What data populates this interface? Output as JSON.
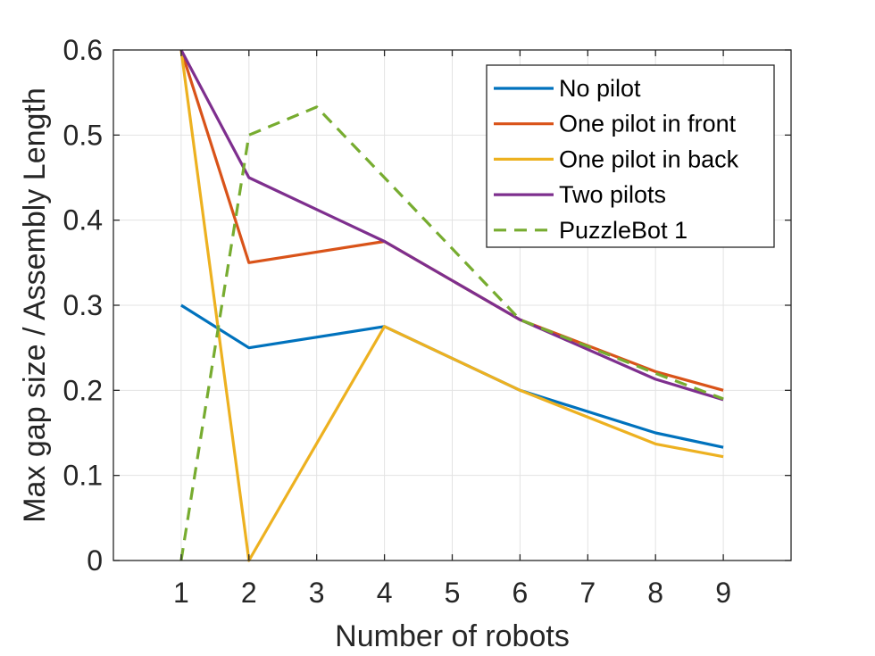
{
  "chart_data": {
    "type": "line",
    "xlabel": "Number of robots",
    "ylabel": "Max gap size / Assembly Length",
    "xlim": [
      0,
      10
    ],
    "ylim": [
      0,
      0.6
    ],
    "x_ticks": [
      1,
      2,
      3,
      4,
      5,
      6,
      7,
      8,
      9
    ],
    "x_tick_labels": [
      "1",
      "2",
      "3",
      "4",
      "5",
      "6",
      "7",
      "8",
      "9"
    ],
    "y_ticks": [
      0,
      0.1,
      0.2,
      0.3,
      0.4,
      0.5,
      0.6
    ],
    "y_tick_labels": [
      "0",
      "0.1",
      "0.2",
      "0.3",
      "0.4",
      "0.5",
      "0.6"
    ],
    "grid": true,
    "legend_position": "top-right",
    "series": [
      {
        "name": "No pilot",
        "color": "#0072BD",
        "dash": "solid",
        "x": [
          1,
          2,
          4,
          6,
          8,
          9
        ],
        "values": [
          0.3,
          0.25,
          0.275,
          0.2,
          0.15,
          0.133
        ]
      },
      {
        "name": "One pilot in front",
        "color": "#D95319",
        "dash": "solid",
        "x": [
          1,
          2,
          4,
          6,
          8,
          9
        ],
        "values": [
          0.6,
          0.35,
          0.375,
          0.283,
          0.222,
          0.2
        ]
      },
      {
        "name": "One pilot in back",
        "color": "#EDB120",
        "dash": "solid",
        "x": [
          1,
          2,
          4,
          6,
          8,
          9
        ],
        "values": [
          0.6,
          0.0,
          0.275,
          0.2,
          0.137,
          0.122
        ]
      },
      {
        "name": "Two pilots",
        "color": "#7E2F8E",
        "dash": "solid",
        "x": [
          1,
          2,
          4,
          6,
          8,
          9
        ],
        "values": [
          0.6,
          0.45,
          0.375,
          0.283,
          0.213,
          0.189
        ]
      },
      {
        "name": "PuzzleBot 1",
        "color": "#77AC30",
        "dash": "dashed",
        "x": [
          1,
          2,
          3,
          4,
          6,
          8,
          9
        ],
        "values": [
          0.0,
          0.5,
          0.533,
          0.45,
          0.283,
          0.22,
          0.19
        ]
      }
    ]
  }
}
